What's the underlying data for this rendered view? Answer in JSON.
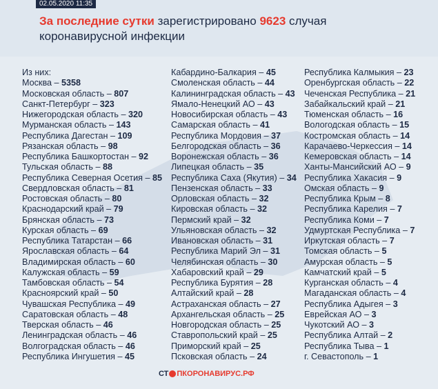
{
  "header": {
    "date": "02.05.2020 11:35",
    "title_lead": "За последние сутки",
    "title_verb": "зарегистрировано",
    "title_count": 9623,
    "title_tail": "случая коронавирусной инфекции"
  },
  "separator": "–",
  "intro": "Из них:",
  "columns": [
    {
      "items": [
        {
          "name": "Москва",
          "count": 5358
        },
        {
          "name": "Московская область",
          "count": 807
        },
        {
          "name": "Санкт-Петербург",
          "count": 323
        },
        {
          "name": "Нижегородская область",
          "count": 320
        },
        {
          "name": "Мурманская область",
          "count": 143
        },
        {
          "name": "Республика Дагестан",
          "count": 109
        },
        {
          "name": "Рязанская область",
          "count": 98
        },
        {
          "name": "Республика Башкортостан",
          "count": 92
        },
        {
          "name": "Тульская область",
          "count": 88
        },
        {
          "name": "Республика Северная Осетия",
          "count": 85
        },
        {
          "name": "Свердловская область",
          "count": 81
        },
        {
          "name": "Ростовская область",
          "count": 80
        },
        {
          "name": "Краснодарский край",
          "count": 79
        },
        {
          "name": "Брянская область",
          "count": 73
        },
        {
          "name": "Курская область",
          "count": 69
        },
        {
          "name": "Республика Татарстан",
          "count": 66
        },
        {
          "name": "Ярославская область",
          "count": 64
        },
        {
          "name": "Владимирская область",
          "count": 60
        },
        {
          "name": "Калужская область",
          "count": 59
        },
        {
          "name": "Тамбовская область",
          "count": 54
        },
        {
          "name": "Красноярский край",
          "count": 50
        },
        {
          "name": "Чувашская Республика",
          "count": 49
        },
        {
          "name": "Саратовская область",
          "count": 48
        },
        {
          "name": "Тверская область",
          "count": 46
        },
        {
          "name": "Ленинградская область",
          "count": 46
        },
        {
          "name": "Волгоградская область",
          "count": 46
        },
        {
          "name": "Республика Ингушетия",
          "count": 45
        }
      ]
    },
    {
      "items": [
        {
          "name": "Кабардино-Балкария",
          "count": 45
        },
        {
          "name": "Смоленская область",
          "count": 44
        },
        {
          "name": "Калининградская область",
          "count": 43
        },
        {
          "name": "Ямало-Ненецкий АО",
          "count": 43
        },
        {
          "name": "Новосибирская область",
          "count": 43
        },
        {
          "name": "Самарская область",
          "count": 41
        },
        {
          "name": "Республика Мордовия",
          "count": 37
        },
        {
          "name": "Белгородская область",
          "count": 36
        },
        {
          "name": "Воронежская область",
          "count": 36
        },
        {
          "name": "Липецкая область",
          "count": 35
        },
        {
          "name": "Республика Саха (Якутия)",
          "count": 34
        },
        {
          "name": "Пензенская область",
          "count": 33
        },
        {
          "name": "Орловская область",
          "count": 32
        },
        {
          "name": "Кировская область",
          "count": 32
        },
        {
          "name": "Пермский край",
          "count": 32
        },
        {
          "name": "Ульяновская область",
          "count": 32
        },
        {
          "name": "Ивановская область",
          "count": 31
        },
        {
          "name": "Республика Марий Эл",
          "count": 31
        },
        {
          "name": "Челябинская область",
          "count": 30
        },
        {
          "name": "Хабаровский край",
          "count": 29
        },
        {
          "name": "Республика Бурятия",
          "count": 28
        },
        {
          "name": "Алтайский край",
          "count": 28
        },
        {
          "name": "Астраханская область",
          "count": 27
        },
        {
          "name": "Архангельская область",
          "count": 25
        },
        {
          "name": "Новгородская область",
          "count": 25
        },
        {
          "name": "Ставропольский край",
          "count": 25
        },
        {
          "name": "Приморский край",
          "count": 25
        },
        {
          "name": "Псковская область",
          "count": 24
        }
      ]
    },
    {
      "items": [
        {
          "name": "Республика Калмыкия",
          "count": 23
        },
        {
          "name": "Оренбургская область",
          "count": 22
        },
        {
          "name": "Чеченская Республика",
          "count": 21
        },
        {
          "name": "Забайкальский край",
          "count": 21
        },
        {
          "name": "Тюменская область",
          "count": 16
        },
        {
          "name": "Вологодская область",
          "count": 15
        },
        {
          "name": "Костромская область",
          "count": 14
        },
        {
          "name": "Карачаево-Черкессия",
          "count": 14
        },
        {
          "name": "Кемеровская область",
          "count": 14
        },
        {
          "name": "Ханты-Мансийский АО",
          "count": 9
        },
        {
          "name": "Республика Хакасия",
          "count": 9
        },
        {
          "name": "Омская область",
          "count": 9
        },
        {
          "name": "Республика Крым",
          "count": 8
        },
        {
          "name": "Республика Карелия",
          "count": 7
        },
        {
          "name": "Республика Коми",
          "count": 7
        },
        {
          "name": "Удмуртская Республика",
          "count": 7
        },
        {
          "name": "Иркутская область",
          "count": 7
        },
        {
          "name": "Томская область",
          "count": 5
        },
        {
          "name": "Амурская область",
          "count": 5
        },
        {
          "name": "Камчатский край",
          "count": 5
        },
        {
          "name": "Курганская область",
          "count": 4
        },
        {
          "name": "Магаданская область",
          "count": 4
        },
        {
          "name": "Республика Адыгея",
          "count": 3
        },
        {
          "name": "Еврейская АО",
          "count": 3
        },
        {
          "name": "Чукотский АО",
          "count": 3
        },
        {
          "name": "Республика Алтай",
          "count": 2
        },
        {
          "name": "Республика Тыва",
          "count": 1
        },
        {
          "name": "г. Севастополь",
          "count": 1
        }
      ]
    }
  ],
  "footer": {
    "logo_left": "СТ",
    "logo_right": "ПКОРОНАВИРУС.РФ"
  }
}
